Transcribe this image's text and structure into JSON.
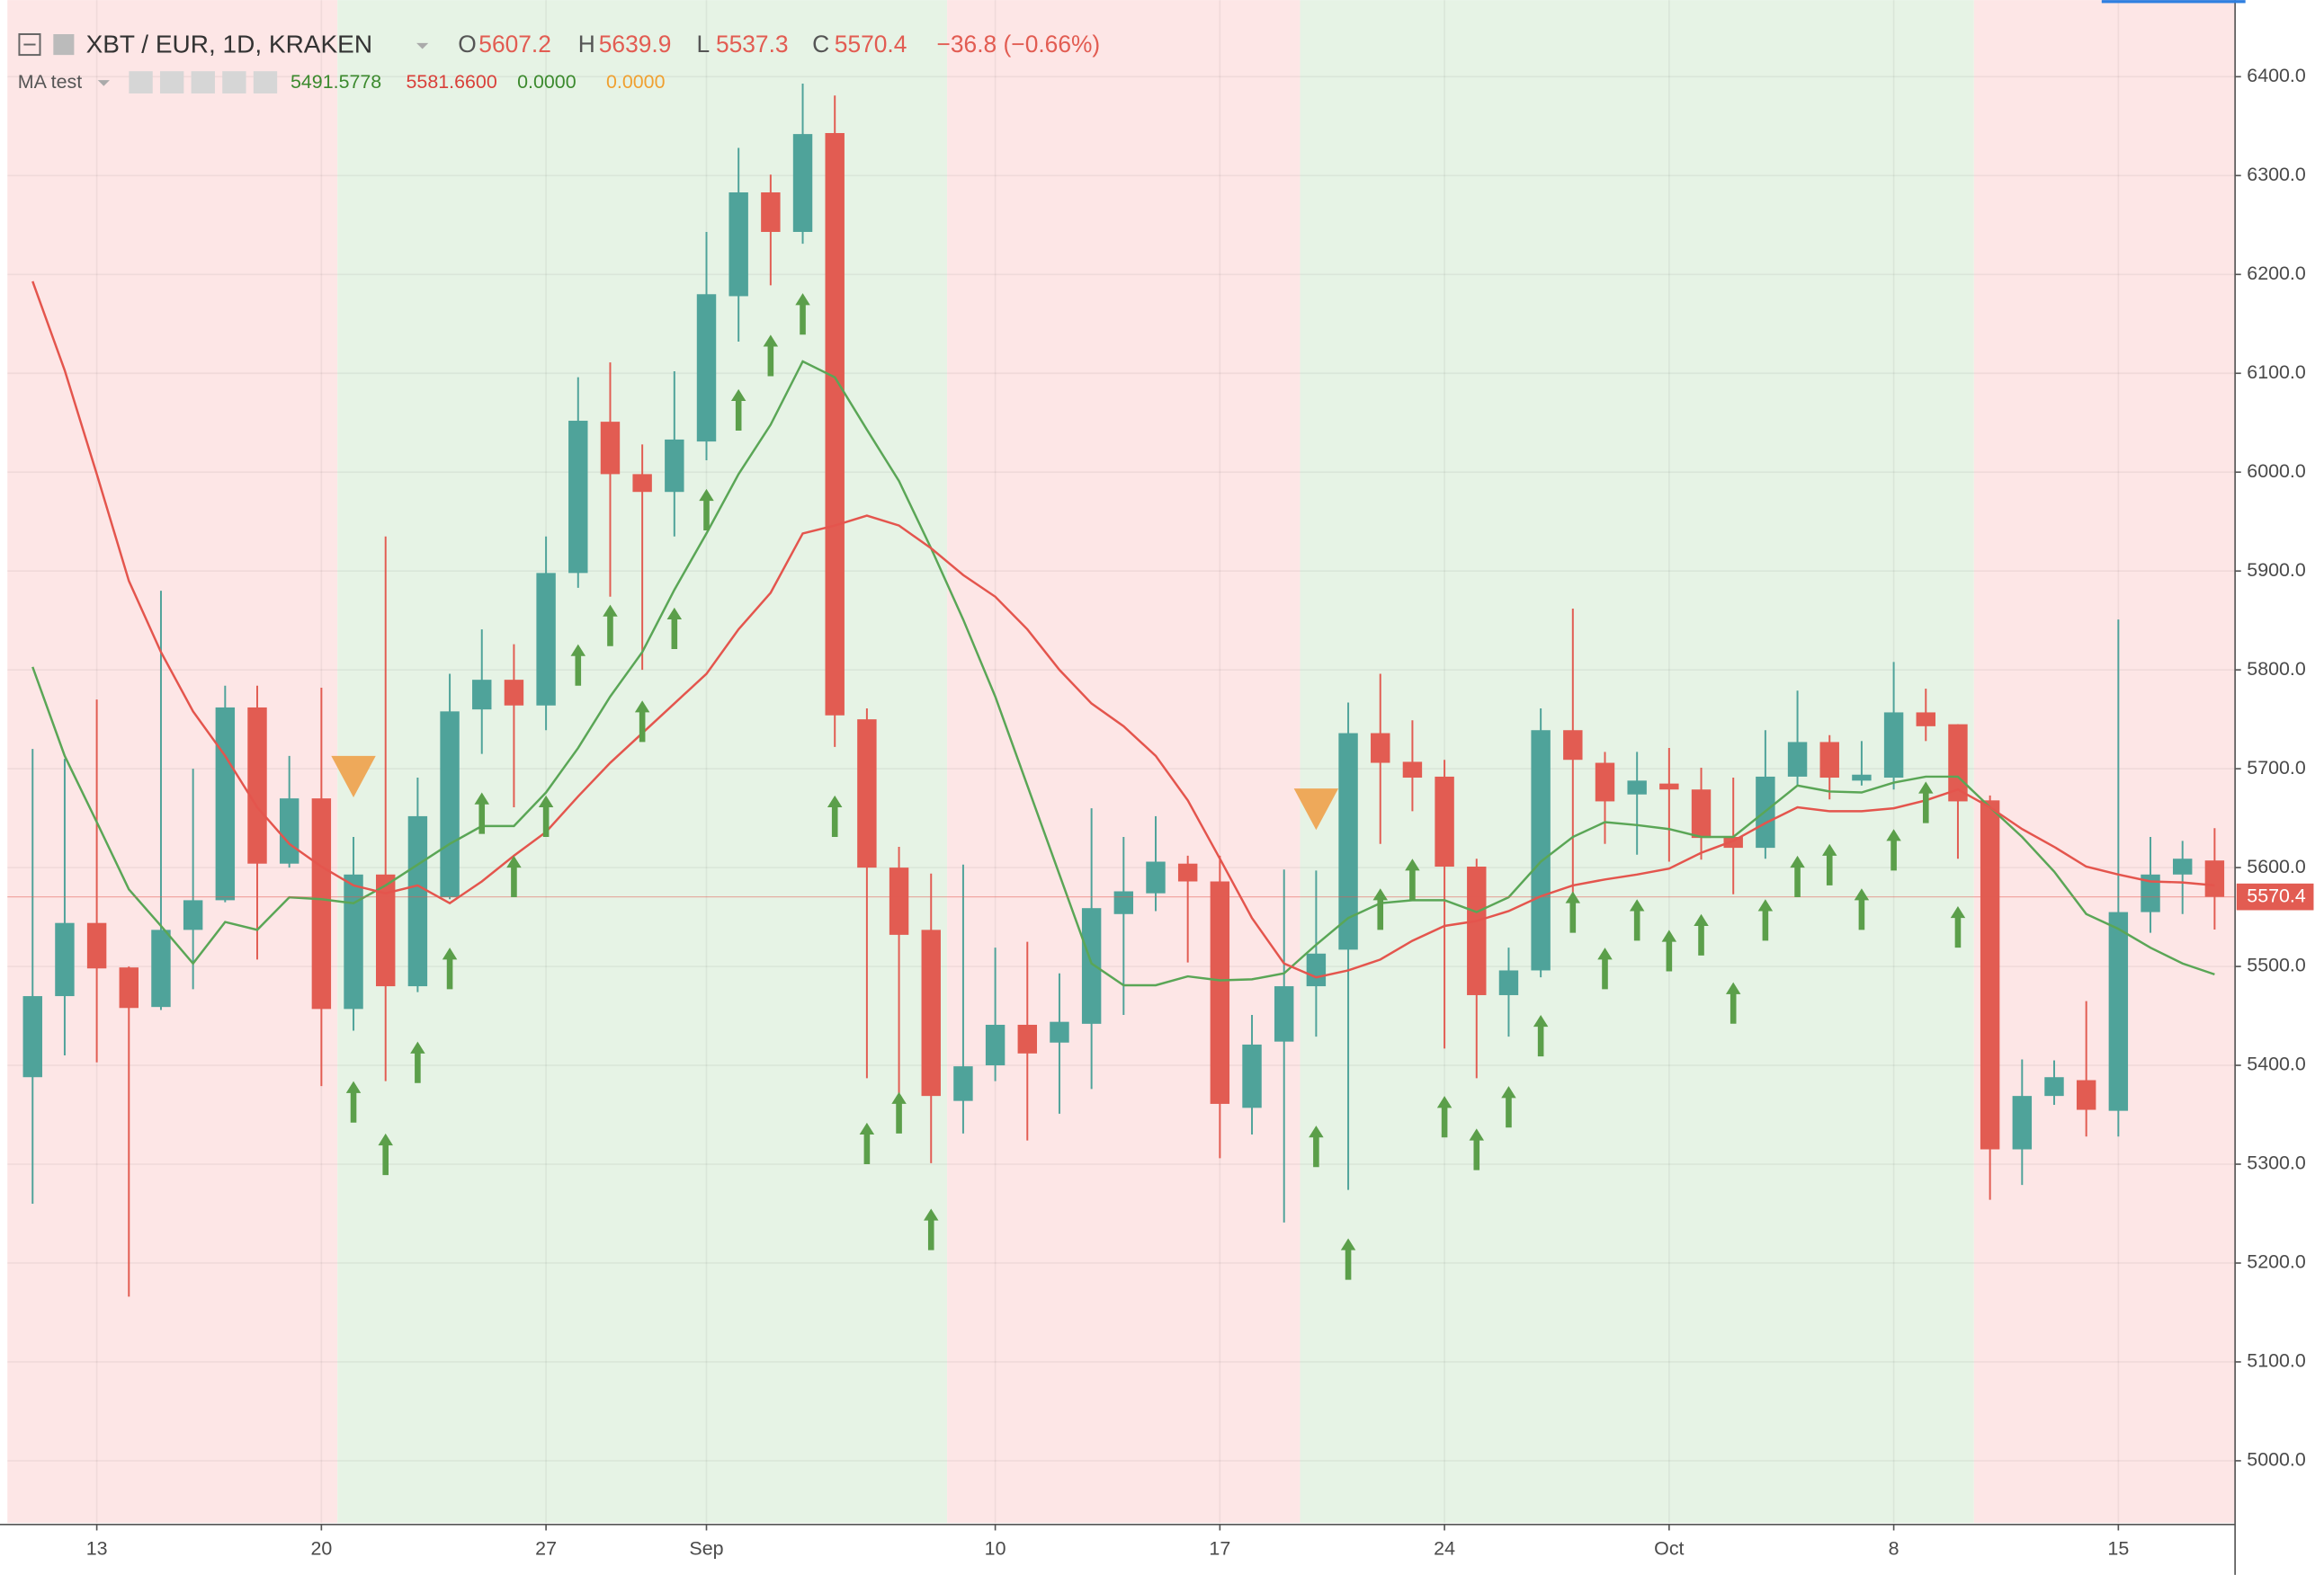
{
  "chart_data": {
    "type": "candlestick",
    "legend": {
      "symbol": "XBT / EUR, 1D, KRAKEN",
      "ohlc": [
        {
          "key": "O",
          "value": "5607.2"
        },
        {
          "key": "H",
          "value": "5639.9"
        },
        {
          "key": "L",
          "value": "5537.3"
        },
        {
          "key": "C",
          "value": "5570.4"
        }
      ],
      "change": "−36.8 (−0.66%)",
      "indicator": "MA test",
      "indicator_values": [
        {
          "text": "5491.5778",
          "color": "#3c8a2e"
        },
        {
          "text": "5581.6600",
          "color": "#d9403a"
        },
        {
          "text": "0.0000",
          "color": "#3c8a2e"
        },
        {
          "text": "0.0000",
          "color": "#f0a030"
        }
      ]
    },
    "categories": [
      null,
      null,
      "13",
      null,
      null,
      null,
      null,
      null,
      null,
      "20",
      null,
      null,
      null,
      null,
      null,
      null,
      "27",
      null,
      null,
      null,
      null,
      "Sep",
      null,
      null,
      null,
      null,
      null,
      null,
      null,
      null,
      "10",
      null,
      null,
      null,
      null,
      null,
      null,
      "17",
      null,
      null,
      null,
      null,
      null,
      null,
      "24",
      null,
      null,
      null,
      null,
      null,
      null,
      "Oct",
      null,
      null,
      null,
      null,
      null,
      null,
      "8",
      null,
      null,
      null,
      null,
      null,
      null,
      "15",
      null,
      null,
      null
    ],
    "open": [
      5388,
      5470,
      5544,
      5499,
      5459,
      5537,
      5567,
      5762,
      5604,
      5670,
      5457,
      5593,
      5480,
      5570,
      5760,
      5790,
      5764,
      5898,
      6051,
      5998,
      5980,
      6031,
      6178,
      6283,
      6243,
      6343,
      5750,
      5600,
      5537,
      5364,
      5400,
      5441,
      5423,
      5442,
      5553,
      5574,
      5604,
      5586,
      5357,
      5424,
      5480,
      5517,
      5736,
      5707,
      5692,
      5601,
      5471,
      5496,
      5739,
      5706,
      5674,
      5685,
      5679,
      5631,
      5620,
      5692,
      5727,
      5688,
      5691,
      5757,
      5745,
      5668,
      5315,
      5369,
      5385,
      5354,
      5555,
      5593,
      5607.2
    ],
    "high": [
      5720,
      5710,
      5770,
      5500,
      5880,
      5700,
      5784,
      5784,
      5713,
      5782,
      5631,
      5935,
      5691,
      5796,
      5841,
      5826,
      5935,
      6096,
      6111,
      6028,
      6102,
      6243,
      6328,
      6301,
      6393,
      6381,
      5761,
      5621,
      5594,
      5603,
      5519,
      5525,
      5493,
      5660,
      5631,
      5652,
      5612,
      5612,
      5451,
      5598,
      5597,
      5767,
      5796,
      5749,
      5709,
      5609,
      5519,
      5761,
      5862,
      5717,
      5717,
      5721,
      5701,
      5691,
      5739,
      5779,
      5734,
      5728,
      5808,
      5781,
      5745,
      5673,
      5406,
      5405,
      5465,
      5851,
      5631,
      5627,
      5639.9
    ],
    "low": [
      5260,
      5410,
      5403,
      5166,
      5456,
      5477,
      5565,
      5507,
      5600,
      5379,
      5435,
      5384,
      5474,
      5568,
      5715,
      5661,
      5739,
      5883,
      5874,
      5800,
      5935,
      6012,
      6132,
      6189,
      6231,
      5722,
      5387,
      5361,
      5301,
      5331,
      5384,
      5324,
      5351,
      5376,
      5451,
      5556,
      5504,
      5306,
      5330,
      5241,
      5429,
      5274,
      5624,
      5657,
      5417,
      5387,
      5429,
      5489,
      5571,
      5624,
      5613,
      5606,
      5608,
      5573,
      5609,
      5683,
      5669,
      5683,
      5679,
      5728,
      5609,
      5264,
      5279,
      5360,
      5328,
      5328,
      5534,
      5553,
      5537.3
    ],
    "close": [
      5470,
      5544,
      5498,
      5458,
      5537,
      5567,
      5762,
      5604,
      5670,
      5457,
      5593,
      5480,
      5652,
      5758,
      5790,
      5764,
      5898,
      6052,
      5998,
      5980,
      6033,
      6180,
      6283,
      6243,
      6342,
      5754,
      5600,
      5532,
      5369,
      5399,
      5441,
      5412,
      5444,
      5559,
      5576,
      5606,
      5586,
      5361,
      5421,
      5480,
      5513,
      5736,
      5706,
      5691,
      5601,
      5471,
      5496,
      5739,
      5709,
      5667,
      5688,
      5679,
      5630,
      5620,
      5692,
      5727,
      5691,
      5694,
      5757,
      5743,
      5667,
      5315,
      5369,
      5388,
      5355,
      5555,
      5593,
      5609,
      5570.4
    ],
    "up_color": "#4fa39a",
    "down_color": "#e25c52",
    "series": [
      {
        "color": "#5aa656",
        "values": [
          5803,
          5713,
          5646,
          5578,
          5541,
          5503,
          5545,
          5537,
          5570,
          5568,
          5564,
          5582,
          5603,
          5624,
          5642,
          5642,
          5676,
          5721,
          5773,
          5818,
          5881,
          5938,
          5998,
          6048,
          6112,
          6096,
          6043,
          5991,
          5923,
          5851,
          5773,
          5683,
          5593,
          5503,
          5481,
          5481,
          5490,
          5486,
          5487,
          5493,
          5522,
          5549,
          5564,
          5567,
          5567,
          5555,
          5570,
          5606,
          5631,
          5646,
          5643,
          5639,
          5631,
          5631,
          5657,
          5683,
          5677,
          5676,
          5686,
          5692,
          5692,
          5661,
          5631,
          5596,
          5553,
          5538,
          5519,
          5503,
          5492
        ]
      },
      {
        "color": "#e4554d",
        "values": [
          6193,
          6103,
          5998,
          5890,
          5818,
          5758,
          5713,
          5661,
          5624,
          5601,
          5582,
          5574,
          5582,
          5564,
          5586,
          5612,
          5636,
          5672,
          5706,
          5736,
          5766,
          5796,
          5841,
          5878,
          5938,
          5946,
          5956,
          5946,
          5923,
          5896,
          5874,
          5841,
          5800,
          5766,
          5743,
          5713,
          5668,
          5609,
          5549,
          5503,
          5489,
          5496,
          5507,
          5526,
          5541,
          5546,
          5556,
          5571,
          5582,
          5588,
          5593,
          5599,
          5615,
          5627,
          5645,
          5661,
          5657,
          5657,
          5660,
          5668,
          5679,
          5661,
          5639,
          5621,
          5601,
          5593,
          5586,
          5585,
          5582
        ]
      }
    ],
    "regions": [
      {
        "from": 0,
        "to": 9,
        "color": "#fde6e6"
      },
      {
        "from": 10,
        "to": 28,
        "color": "#e6f3e5"
      },
      {
        "from": 29,
        "to": 39,
        "color": "#fde6e6"
      },
      {
        "from": 40,
        "to": 60,
        "color": "#e6f3e5"
      },
      {
        "from": 61,
        "to": 68,
        "color": "#fde6e6"
      }
    ],
    "up_arrows": {
      "color": "#5b9f4a",
      "index": [
        10,
        11,
        12,
        13,
        14,
        15,
        16,
        17,
        18,
        19,
        20,
        21,
        22,
        23,
        24,
        25,
        26,
        27,
        28,
        40,
        41,
        42,
        43,
        44,
        45,
        46,
        47,
        48,
        49,
        50,
        51,
        52,
        53,
        54,
        55,
        56,
        57,
        58,
        59,
        60
      ],
      "values": [
        5384,
        5331,
        5424,
        5519,
        5676,
        5612,
        5673,
        5826,
        5866,
        5769,
        5863,
        5983,
        6084,
        6139,
        6181,
        5673,
        5342,
        5373,
        5255,
        5339,
        5225,
        5579,
        5609,
        5369,
        5336,
        5379,
        5451,
        5576,
        5519,
        5568,
        5537,
        5553,
        5484,
        5568,
        5612,
        5624,
        5579,
        5639,
        5687,
        5561
      ]
    },
    "down_triangles": {
      "color": "#eea95a",
      "index": [
        10,
        40
      ],
      "values": [
        5713,
        5680
      ]
    },
    "last_price": 5570.4,
    "ylim": [
      4937,
      6470
    ],
    "yticks": [
      {
        "value": 5000,
        "label": "5000.0"
      },
      {
        "value": 5100,
        "label": "5100.0"
      },
      {
        "value": 5200,
        "label": "5200.0"
      },
      {
        "value": 5300,
        "label": "5300.0"
      },
      {
        "value": 5400,
        "label": "5400.0"
      },
      {
        "value": 5500,
        "label": "5500.0"
      },
      {
        "value": 5600,
        "label": "5600.0"
      },
      {
        "value": 5700,
        "label": "5700.0"
      },
      {
        "value": 5800,
        "label": "5800.0"
      },
      {
        "value": 5900,
        "label": "5900.0"
      },
      {
        "value": 6000,
        "label": "6000.0"
      },
      {
        "value": 6100,
        "label": "6100.0"
      },
      {
        "value": 6200,
        "label": "6200.0"
      },
      {
        "value": 6300,
        "label": "6300.0"
      },
      {
        "value": 6400,
        "label": "6400.0"
      }
    ],
    "grid": true
  }
}
